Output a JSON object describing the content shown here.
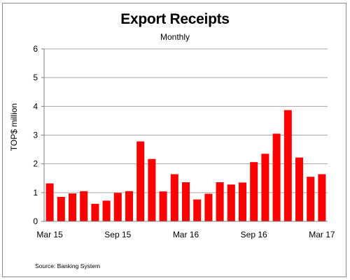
{
  "chart_data": {
    "type": "bar",
    "title": "Export Receipts",
    "subtitle": "Monthly",
    "xlabel": "",
    "ylabel": "TOP$ million",
    "ylim": [
      0,
      6
    ],
    "yticks": [
      0,
      1,
      2,
      3,
      4,
      5,
      6
    ],
    "grid": true,
    "legend": "none",
    "bar_color": "#ff0000",
    "grid_color": "#a6a6a6",
    "categories": [
      "Mar 15",
      "Apr 15",
      "May 15",
      "Jun 15",
      "Jul 15",
      "Aug 15",
      "Sep 15",
      "Oct 15",
      "Nov 15",
      "Dec 15",
      "Jan 16",
      "Feb 16",
      "Mar 16",
      "Apr 16",
      "May 16",
      "Jun 16",
      "Jul 16",
      "Aug 16",
      "Sep 16",
      "Oct 16",
      "Nov 16",
      "Dec 16",
      "Jan 17",
      "Feb 17",
      "Mar 17"
    ],
    "xtick_labels": [
      {
        "index": 0,
        "label": "Mar 15"
      },
      {
        "index": 6,
        "label": "Sep 15"
      },
      {
        "index": 12,
        "label": "Mar 16"
      },
      {
        "index": 18,
        "label": "Sep 16"
      },
      {
        "index": 24,
        "label": "Mar 17"
      }
    ],
    "values": [
      1.32,
      0.85,
      0.97,
      1.05,
      0.61,
      0.72,
      0.99,
      1.05,
      2.78,
      2.17,
      1.04,
      1.64,
      1.36,
      0.76,
      0.96,
      1.36,
      1.28,
      1.35,
      2.06,
      2.35,
      3.05,
      3.87,
      2.22,
      1.55,
      1.64
    ]
  },
  "source_note": "Source: Banking System"
}
